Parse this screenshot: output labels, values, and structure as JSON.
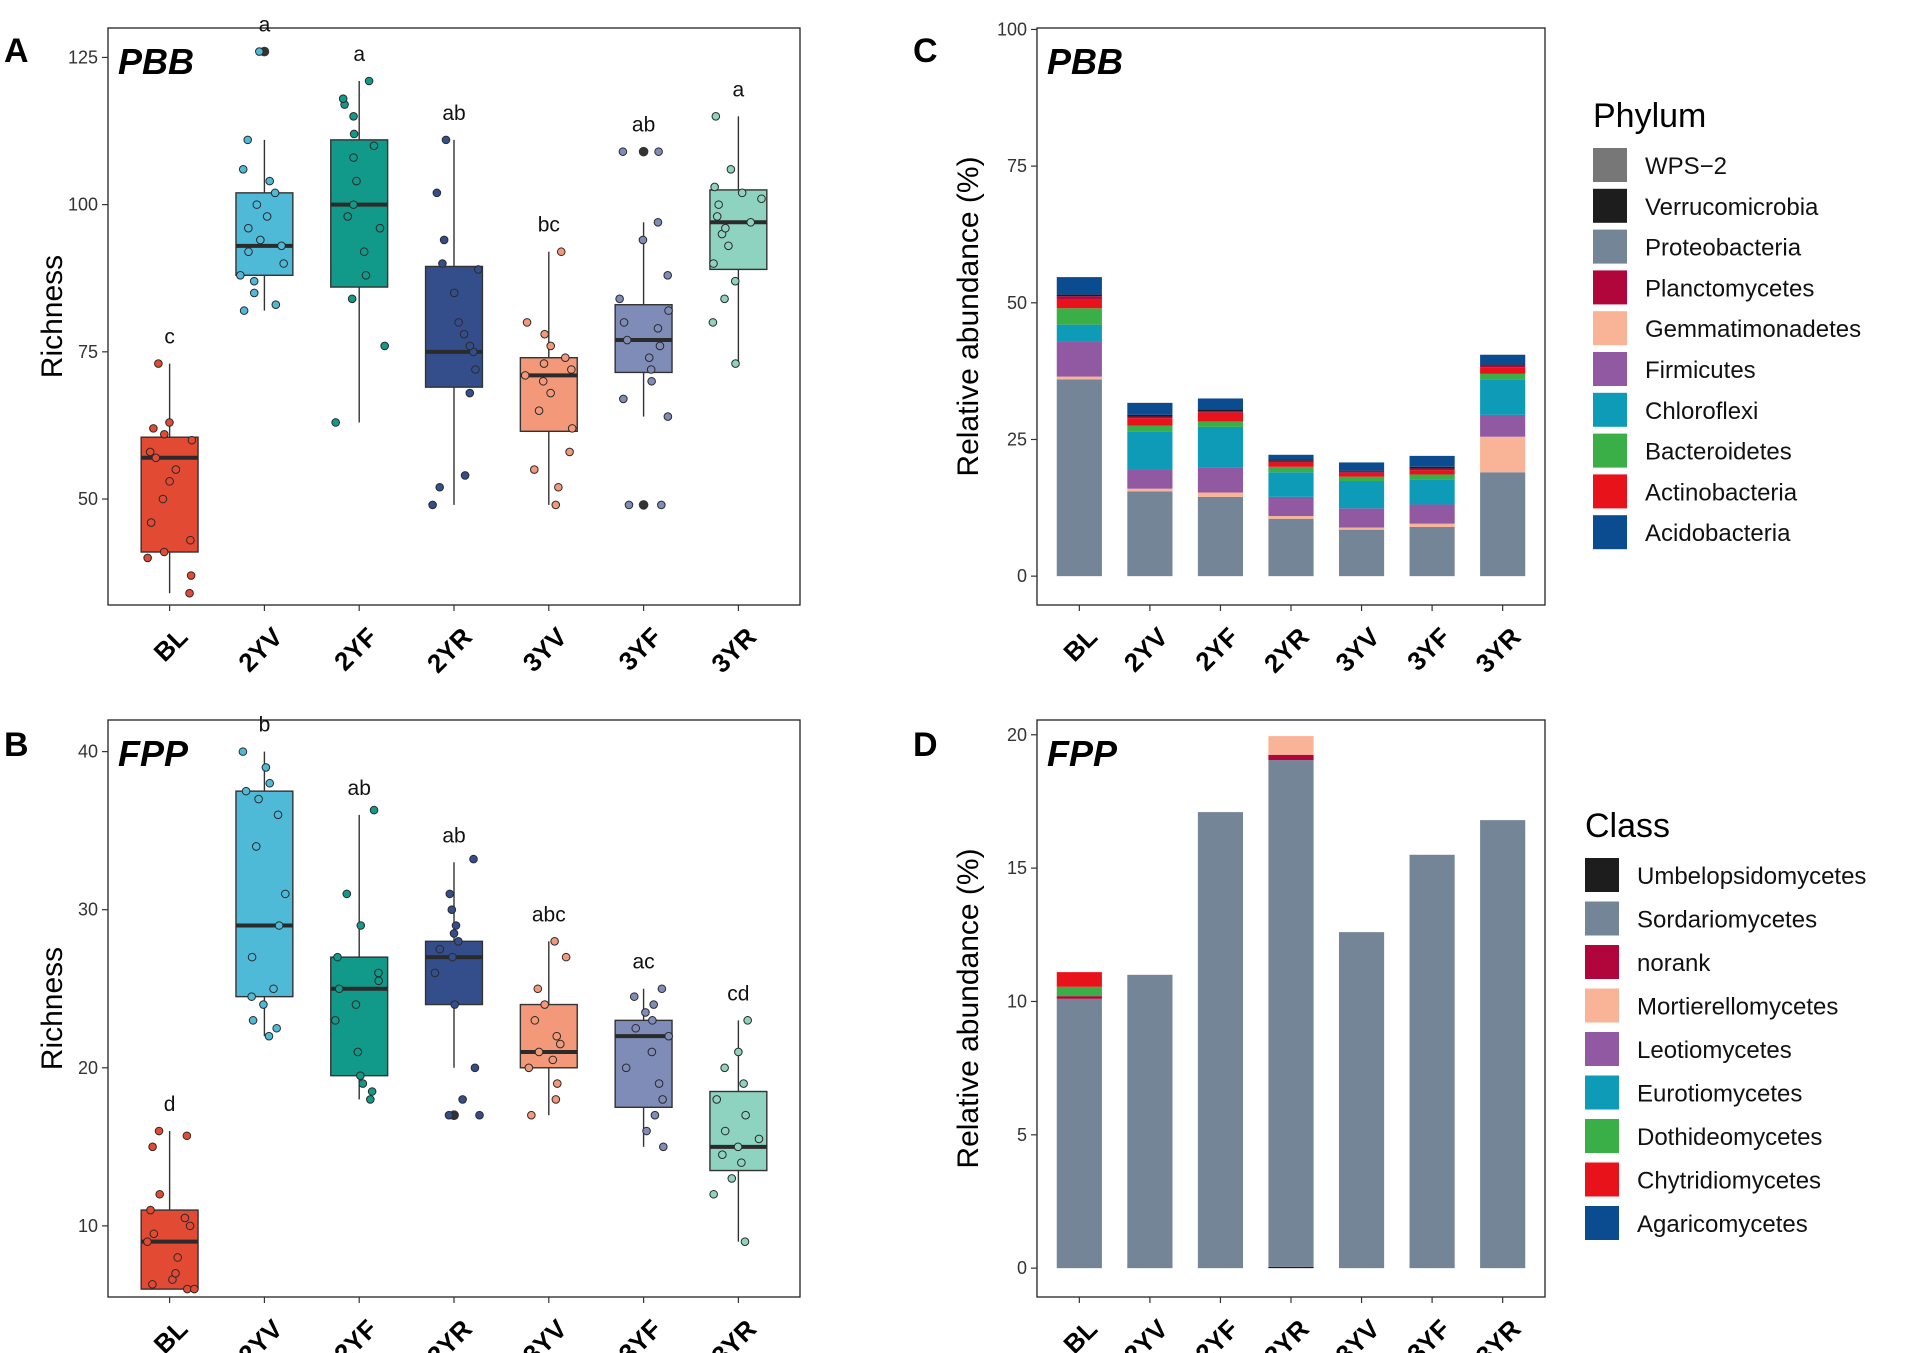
{
  "colors": {
    "BL": "#E24A33",
    "2YV": "#4FBAD8",
    "2YF": "#11998A",
    "2YR": "#344E8C",
    "3YV": "#F4987A",
    "3YF": "#7F8CB7",
    "3YR": "#8DD3BF"
  },
  "chart_data": [
    {
      "id": "A",
      "panel_label": "A",
      "type": "box",
      "title": "PBB",
      "xlabel": "",
      "ylabel": "Richness",
      "ylim": [
        32,
        130
      ],
      "yticks": [
        50,
        75,
        100,
        125
      ],
      "categories": [
        "BL",
        "2YV",
        "2YF",
        "2YR",
        "3YV",
        "3YF",
        "3YR"
      ],
      "boxes": [
        {
          "group": "BL",
          "min": 34,
          "q1": 41,
          "median": 57,
          "q3": 60.5,
          "max": 73,
          "outliers": [],
          "label": "c",
          "points": [
            34,
            37,
            40,
            41,
            43,
            46,
            50,
            53,
            55,
            57,
            58,
            60,
            61,
            62,
            63,
            73
          ]
        },
        {
          "group": "2YV",
          "min": 82,
          "q1": 88,
          "median": 93,
          "q3": 102,
          "max": 111,
          "outliers": [
            126
          ],
          "label": "a",
          "points": [
            82,
            83,
            85,
            87,
            88,
            90,
            92,
            93,
            94,
            96,
            98,
            100,
            102,
            104,
            106,
            111,
            126
          ]
        },
        {
          "group": "2YF",
          "min": 63,
          "q1": 86,
          "median": 100,
          "q3": 111,
          "max": 121,
          "outliers": [],
          "label": "a",
          "points": [
            63,
            76,
            84,
            88,
            92,
            96,
            98,
            100,
            104,
            108,
            110,
            112,
            115,
            117,
            118,
            121
          ]
        },
        {
          "group": "2YR",
          "min": 49,
          "q1": 69,
          "median": 75,
          "q3": 89.5,
          "max": 111,
          "outliers": [],
          "label": "ab",
          "points": [
            49,
            52,
            54,
            68,
            72,
            75,
            76,
            78,
            80,
            85,
            89,
            90,
            94,
            102,
            111
          ]
        },
        {
          "group": "3YV",
          "min": 49,
          "q1": 61.5,
          "median": 71,
          "q3": 74,
          "max": 92,
          "outliers": [],
          "label": "bc",
          "points": [
            49,
            52,
            55,
            58,
            62,
            65,
            68,
            70,
            71,
            72,
            73,
            74,
            76,
            78,
            80,
            92
          ]
        },
        {
          "group": "3YF",
          "min": 64,
          "q1": 71.5,
          "median": 77,
          "q3": 83,
          "max": 97,
          "outliers": [
            49,
            109
          ],
          "label": "ab",
          "points": [
            49,
            49,
            64,
            67,
            70,
            72,
            74,
            76,
            77,
            79,
            80,
            82,
            84,
            88,
            94,
            97,
            109,
            109
          ]
        },
        {
          "group": "3YR",
          "min": 73,
          "q1": 89,
          "median": 97,
          "q3": 102.5,
          "max": 115,
          "outliers": [],
          "label": "a",
          "points": [
            73,
            80,
            84,
            87,
            90,
            93,
            95,
            96,
            97,
            98,
            100,
            101,
            102,
            103,
            106,
            115
          ]
        }
      ]
    },
    {
      "id": "B",
      "panel_label": "B",
      "type": "box",
      "title": "FPP",
      "xlabel": "",
      "ylabel": "Richness",
      "ylim": [
        5.5,
        42
      ],
      "yticks": [
        10,
        20,
        30,
        40
      ],
      "categories": [
        "BL",
        "2YV",
        "2YF",
        "2YR",
        "3YV",
        "3YF",
        "3YR"
      ],
      "boxes": [
        {
          "group": "BL",
          "min": 6,
          "q1": 6,
          "median": 9,
          "q3": 11,
          "max": 16,
          "outliers": [],
          "label": "d",
          "points": [
            6,
            6,
            6.3,
            6.6,
            7,
            8,
            9,
            9.5,
            10,
            10.5,
            11,
            12,
            15,
            15.7,
            16
          ]
        },
        {
          "group": "2YV",
          "min": 22,
          "q1": 24.5,
          "median": 29,
          "q3": 37.5,
          "max": 40,
          "outliers": [],
          "label": "b",
          "points": [
            22,
            22.5,
            23,
            24,
            24.5,
            25,
            27,
            29,
            31,
            34,
            36,
            37,
            37.5,
            38,
            39,
            40
          ]
        },
        {
          "group": "2YF",
          "min": 18,
          "q1": 19.5,
          "median": 25,
          "q3": 27,
          "max": 36,
          "outliers": [],
          "label": "ab",
          "points": [
            18,
            18.5,
            19,
            19.5,
            21,
            23,
            24,
            25,
            25.5,
            26,
            27,
            29,
            31,
            36.3
          ]
        },
        {
          "group": "2YR",
          "min": 20,
          "q1": 24,
          "median": 27,
          "q3": 28,
          "max": 33,
          "outliers": [
            17,
            17
          ],
          "label": "ab",
          "points": [
            17,
            17,
            18,
            20,
            24,
            26,
            27,
            27.5,
            28,
            28.5,
            29,
            30,
            31,
            33.2
          ]
        },
        {
          "group": "3YV",
          "min": 17,
          "q1": 20,
          "median": 21,
          "q3": 24,
          "max": 28,
          "outliers": [],
          "label": "abc",
          "points": [
            17,
            18,
            19,
            20,
            20.5,
            21,
            21.5,
            22,
            23,
            24,
            25,
            27,
            28
          ]
        },
        {
          "group": "3YF",
          "min": 15,
          "q1": 17.5,
          "median": 22,
          "q3": 23,
          "max": 25,
          "outliers": [],
          "label": "ac",
          "points": [
            15,
            16,
            17,
            18,
            19,
            20,
            21,
            22,
            22.5,
            23,
            23.5,
            24,
            24.5,
            25
          ]
        },
        {
          "group": "3YR",
          "min": 9,
          "q1": 13.5,
          "median": 15,
          "q3": 18.5,
          "max": 23,
          "outliers": [],
          "label": "cd",
          "points": [
            9,
            12,
            13,
            14,
            14.5,
            15,
            15.5,
            16,
            17,
            18,
            19,
            20,
            21,
            23
          ]
        }
      ]
    },
    {
      "id": "C",
      "panel_label": "C",
      "type": "bar",
      "stacked": true,
      "title": "PBB",
      "xlabel": "",
      "ylabel": "Relative abundance (%)",
      "ylim": [
        0,
        100
      ],
      "yticks": [
        0,
        25,
        50,
        75,
        100
      ],
      "categories": [
        "BL",
        "2YV",
        "2YF",
        "2YR",
        "3YV",
        "3YF",
        "3YR"
      ],
      "legend_title": "Phylum",
      "legend_position": "right",
      "series": [
        {
          "name": "Proteobacteria",
          "color": "#738597",
          "values": [
            36,
            15.5,
            14.5,
            10.5,
            8.5,
            9,
            19
          ]
        },
        {
          "name": "Gemmatimonadetes",
          "color": "#F9B397",
          "values": [
            0.5,
            0.5,
            0.8,
            0.5,
            0.4,
            0.6,
            6.5
          ]
        },
        {
          "name": "Firmicutes",
          "color": "#9059A1",
          "values": [
            6.5,
            3.5,
            4.5,
            3.5,
            3.5,
            3.5,
            4
          ]
        },
        {
          "name": "Chloroflexi",
          "color": "#0E9BB8",
          "values": [
            3,
            7,
            7.5,
            4.5,
            5,
            4.5,
            6.5
          ]
        },
        {
          "name": "Bacteroidetes",
          "color": "#3AAE47",
          "values": [
            3,
            1,
            1,
            1,
            0.8,
            1,
            1
          ]
        },
        {
          "name": "Actinobacteria",
          "color": "#E8121A",
          "values": [
            1.7,
            1.4,
            1.6,
            0.8,
            0.7,
            0.8,
            1.2
          ]
        },
        {
          "name": "Planctomycetes",
          "color": "#B0063C",
          "values": [
            0.5,
            0.3,
            0.3,
            0.3,
            0.2,
            0.3,
            0.3
          ]
        },
        {
          "name": "Verrucomicrobia",
          "color": "#1D1D1D",
          "values": [
            0.3,
            0.3,
            0.3,
            0.3,
            0.2,
            0.3,
            0.2
          ]
        },
        {
          "name": "WPS-2",
          "color": "#777777",
          "values": [
            0,
            0,
            0,
            0,
            0,
            0,
            0
          ]
        },
        {
          "name": "Acidobacteria",
          "color": "#0B4C90",
          "values": [
            3.2,
            2.2,
            2,
            0.8,
            1.5,
            2,
            1.8
          ]
        }
      ],
      "legend": [
        "WPS−2",
        "Verrucomicrobia",
        "Proteobacteria",
        "Planctomycetes",
        "Gemmatimonadetes",
        "Firmicutes",
        "Chloroflexi",
        "Bacteroidetes",
        "Actinobacteria",
        "Acidobacteria"
      ],
      "legend_colors": [
        "#777777",
        "#1D1D1D",
        "#738597",
        "#B0063C",
        "#F9B397",
        "#9059A1",
        "#0E9BB8",
        "#3AAE47",
        "#E8121A",
        "#0B4C90"
      ]
    },
    {
      "id": "D",
      "panel_label": "D",
      "type": "bar",
      "stacked": true,
      "title": "FPP",
      "xlabel": "",
      "ylabel": "Relative abundance (%)",
      "ylim": [
        0,
        20.5
      ],
      "yticks": [
        0,
        5,
        10,
        15,
        20
      ],
      "categories": [
        "BL",
        "2YV",
        "2YF",
        "2YR",
        "3YV",
        "3YF",
        "3YR"
      ],
      "legend_title": "Class",
      "legend_position": "right",
      "series": [
        {
          "name": "Umbelopsidomycetes",
          "color": "#1D1D1D",
          "values": [
            0,
            0,
            0,
            0.05,
            0,
            0,
            0
          ]
        },
        {
          "name": "Sordariomycetes",
          "color": "#738597",
          "values": [
            10.1,
            11,
            17.1,
            19,
            12.6,
            15.5,
            16.8
          ]
        },
        {
          "name": "norank",
          "color": "#B0063C",
          "values": [
            0.1,
            0,
            0,
            0.2,
            0,
            0,
            0
          ]
        },
        {
          "name": "Dothideomycetes",
          "color": "#3AAE47",
          "values": [
            0.35,
            0,
            0,
            0,
            0,
            0,
            0
          ]
        },
        {
          "name": "Chytridiomycetes",
          "color": "#E8121A",
          "values": [
            0.55,
            0,
            0,
            0,
            0,
            0,
            0
          ]
        },
        {
          "name": "Mortierellomycetes",
          "color": "#F9B397",
          "values": [
            0,
            0,
            0,
            0.7,
            0,
            0,
            0
          ]
        }
      ],
      "legend": [
        "Umbelopsidomycetes",
        "Sordariomycetes",
        "norank",
        "Mortierellomycetes",
        "Leotiomycetes",
        "Eurotiomycetes",
        "Dothideomycetes",
        "Chytridiomycetes",
        "Agaricomycetes"
      ],
      "legend_colors": [
        "#1D1D1D",
        "#738597",
        "#B0063C",
        "#F9B397",
        "#9059A1",
        "#0E9BB8",
        "#3AAE47",
        "#E8121A",
        "#0B4C90"
      ]
    }
  ]
}
